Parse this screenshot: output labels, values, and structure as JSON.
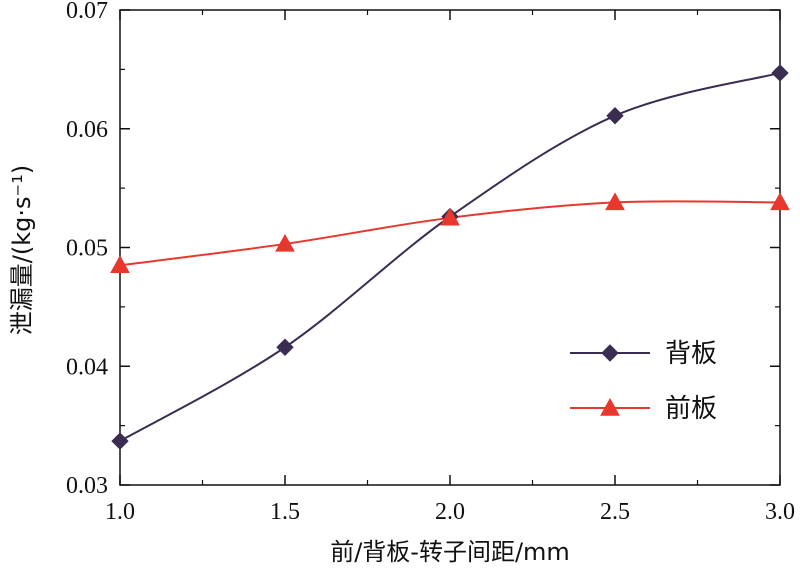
{
  "chart_data": {
    "type": "line",
    "xlabel": "前/背板-转子间距/mm",
    "ylabel": "泄漏量/(kg·s⁻¹)",
    "xlim": [
      1.0,
      3.0
    ],
    "ylim": [
      0.03,
      0.07
    ],
    "x_ticks": [
      "1.0",
      "1.5",
      "2.0",
      "2.5",
      "3.0"
    ],
    "y_ticks": [
      "0.03",
      "0.04",
      "0.05",
      "0.06",
      "0.07"
    ],
    "grid": false,
    "legend_position": "lower-right",
    "series": [
      {
        "name": "背板",
        "color": "#3b2d52",
        "marker": "diamond",
        "x": [
          1.0,
          1.5,
          2.0,
          2.5,
          3.0
        ],
        "y": [
          0.0337,
          0.0416,
          0.0526,
          0.0611,
          0.0647
        ]
      },
      {
        "name": "前板",
        "color": "#e8372c",
        "marker": "triangle",
        "x": [
          1.0,
          1.5,
          2.0,
          2.5,
          3.0
        ],
        "y": [
          0.0485,
          0.0503,
          0.0525,
          0.0538,
          0.0538
        ]
      }
    ]
  }
}
